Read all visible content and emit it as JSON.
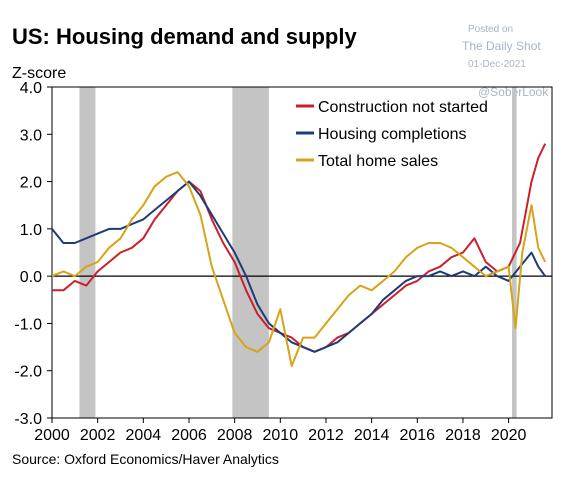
{
  "chart_data": {
    "type": "line",
    "title": "US: Housing demand and supply",
    "ylabel": "Z-score",
    "source": "Source: Oxford Economics/Haver Analytics",
    "watermark": {
      "posted": "Posted on",
      "site": "The Daily Shot",
      "date": "01-Dec-2021",
      "handle": "@SoberLook"
    },
    "xlim": [
      2000,
      2021.9
    ],
    "ylim": [
      -3.0,
      4.0
    ],
    "x_ticks": [
      2000,
      2002,
      2004,
      2006,
      2008,
      2010,
      2012,
      2014,
      2016,
      2018,
      2020
    ],
    "y_ticks": [
      -3.0,
      -2.0,
      -1.0,
      0.0,
      1.0,
      2.0,
      3.0,
      4.0
    ],
    "y_tick_labels": [
      "-3.0",
      "-2.0",
      "-1.0",
      "0.0",
      "1.0",
      "2.0",
      "3.0",
      "4.0"
    ],
    "grid": false,
    "legend": "top-right",
    "recessions": [
      [
        2001.2,
        2001.9
      ],
      [
        2007.9,
        2009.5
      ],
      [
        2020.15,
        2020.35
      ]
    ],
    "series": [
      {
        "name": "Construction not started",
        "color": "#cc1f2d",
        "x": [
          2000,
          2000.5,
          2001,
          2001.5,
          2002,
          2002.5,
          2003,
          2003.5,
          2004,
          2004.5,
          2005,
          2005.5,
          2006,
          2006.5,
          2007,
          2007.5,
          2008,
          2008.5,
          2009,
          2009.5,
          2010,
          2010.5,
          2011,
          2011.5,
          2012,
          2012.5,
          2013,
          2013.5,
          2014,
          2014.5,
          2015,
          2015.5,
          2016,
          2016.5,
          2017,
          2017.5,
          2018,
          2018.5,
          2019,
          2019.5,
          2020,
          2020.5,
          2021,
          2021.3,
          2021.6
        ],
        "y": [
          -0.3,
          -0.3,
          -0.1,
          -0.2,
          0.1,
          0.3,
          0.5,
          0.6,
          0.8,
          1.2,
          1.5,
          1.8,
          2.0,
          1.8,
          1.2,
          0.7,
          0.3,
          -0.3,
          -0.8,
          -1.1,
          -1.2,
          -1.3,
          -1.5,
          -1.6,
          -1.5,
          -1.3,
          -1.2,
          -1.0,
          -0.8,
          -0.6,
          -0.4,
          -0.2,
          -0.1,
          0.1,
          0.2,
          0.4,
          0.5,
          0.8,
          0.3,
          0.1,
          0.2,
          0.7,
          2.0,
          2.5,
          2.8
        ]
      },
      {
        "name": "Housing completions",
        "color": "#1f3c78",
        "x": [
          2000,
          2000.5,
          2001,
          2001.5,
          2002,
          2002.5,
          2003,
          2003.5,
          2004,
          2004.5,
          2005,
          2005.5,
          2006,
          2006.5,
          2007,
          2007.5,
          2008,
          2008.5,
          2009,
          2009.5,
          2010,
          2010.5,
          2011,
          2011.5,
          2012,
          2012.5,
          2013,
          2013.5,
          2014,
          2014.5,
          2015,
          2015.5,
          2016,
          2016.5,
          2017,
          2017.5,
          2018,
          2018.5,
          2019,
          2019.5,
          2020,
          2020.5,
          2021,
          2021.3,
          2021.6
        ],
        "y": [
          1.0,
          0.7,
          0.7,
          0.8,
          0.9,
          1.0,
          1.0,
          1.1,
          1.2,
          1.4,
          1.6,
          1.8,
          2.0,
          1.7,
          1.3,
          0.9,
          0.5,
          0.0,
          -0.6,
          -1.0,
          -1.2,
          -1.4,
          -1.5,
          -1.6,
          -1.5,
          -1.4,
          -1.2,
          -1.0,
          -0.8,
          -0.5,
          -0.3,
          -0.1,
          0.0,
          0.0,
          0.1,
          0.0,
          0.1,
          0.0,
          0.2,
          0.0,
          -0.1,
          0.2,
          0.5,
          0.2,
          0.0
        ]
      },
      {
        "name": "Total home sales",
        "color": "#d6a418",
        "x": [
          2000,
          2000.5,
          2001,
          2001.5,
          2002,
          2002.5,
          2003,
          2003.5,
          2004,
          2004.5,
          2005,
          2005.5,
          2006,
          2006.5,
          2007,
          2007.5,
          2008,
          2008.5,
          2009,
          2009.5,
          2010,
          2010.5,
          2011,
          2011.5,
          2012,
          2012.5,
          2013,
          2013.5,
          2014,
          2014.5,
          2015,
          2015.5,
          2016,
          2016.5,
          2017,
          2017.5,
          2018,
          2018.5,
          2019,
          2019.5,
          2020,
          2020.3,
          2020.6,
          2021,
          2021.3,
          2021.6
        ],
        "y": [
          0.0,
          0.1,
          0.0,
          0.2,
          0.3,
          0.6,
          0.8,
          1.2,
          1.5,
          1.9,
          2.1,
          2.2,
          1.9,
          1.3,
          0.2,
          -0.5,
          -1.2,
          -1.5,
          -1.6,
          -1.4,
          -0.7,
          -1.9,
          -1.3,
          -1.3,
          -1.0,
          -0.7,
          -0.4,
          -0.2,
          -0.3,
          -0.1,
          0.1,
          0.4,
          0.6,
          0.7,
          0.7,
          0.6,
          0.4,
          0.2,
          0.0,
          0.1,
          0.2,
          -1.1,
          0.5,
          1.5,
          0.6,
          0.3
        ]
      }
    ]
  }
}
